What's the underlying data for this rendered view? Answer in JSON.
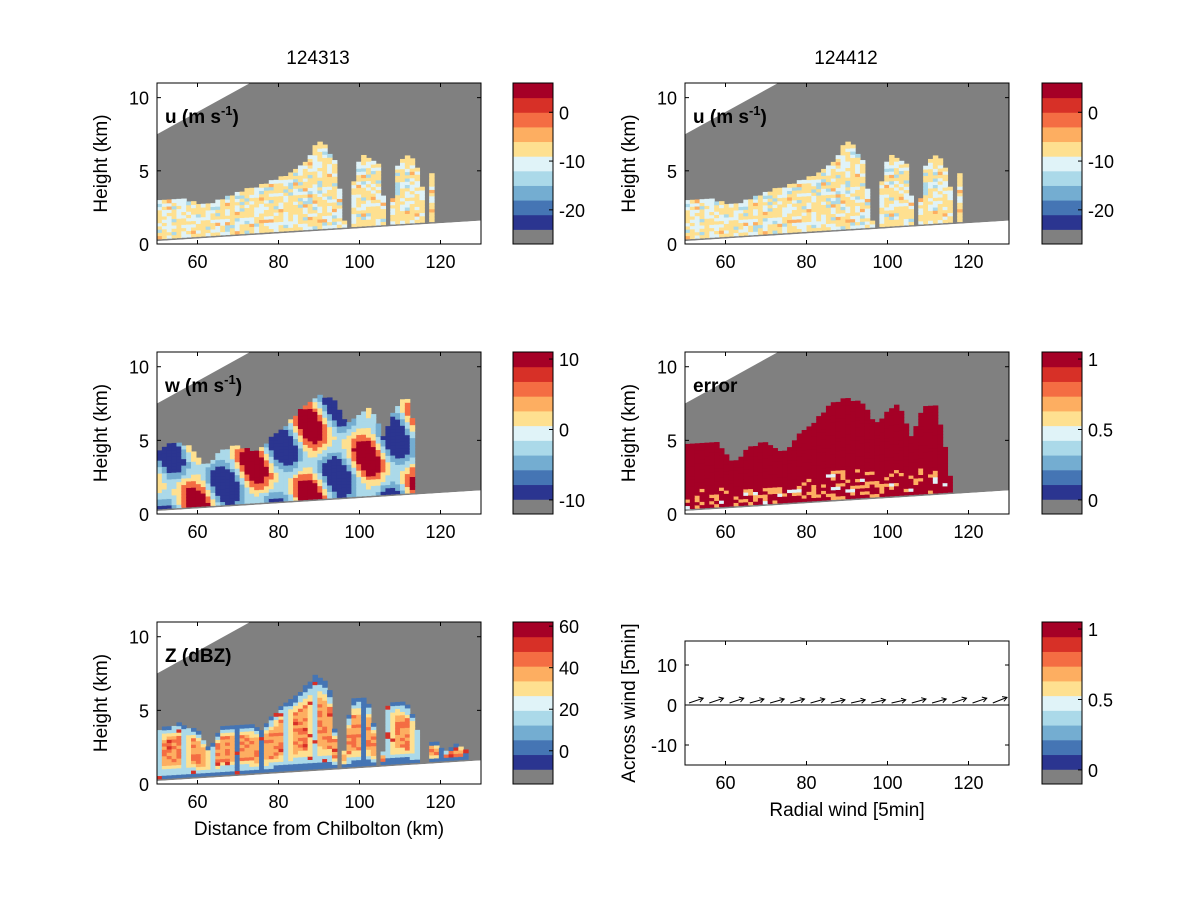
{
  "titles": {
    "left": "124313",
    "right": "124412"
  },
  "colorbar_colors": [
    "#808080",
    "#2b3590",
    "#4575b4",
    "#74add1",
    "#abd9e9",
    "#e0f3f8",
    "#fee090",
    "#fdae61",
    "#f46d43",
    "#d73027",
    "#a50026"
  ],
  "chart_data": [
    {
      "panel": "u-124313",
      "type": "heatmap",
      "label": "u (m s-1)",
      "label_main": "u (m s",
      "label_sup": "-1",
      "label_close": ")",
      "xlabel": "",
      "ylabel": "Height (km)",
      "xlim": [
        50,
        130
      ],
      "ylim": [
        0,
        11
      ],
      "xticks": [
        60,
        80,
        100,
        120
      ],
      "yticks": [
        0,
        5,
        10
      ],
      "cbar_ticks": [
        0,
        -10,
        -20
      ],
      "cbar_range": [
        -27,
        6
      ],
      "cloud_profile": [
        [
          50,
          3.0
        ],
        [
          55,
          3.0
        ],
        [
          62,
          2.6
        ],
        [
          66,
          3.0
        ],
        [
          72,
          3.6
        ],
        [
          78,
          4.2
        ],
        [
          84,
          4.9
        ],
        [
          87,
          5.6
        ],
        [
          90,
          7.0
        ],
        [
          92,
          6.4
        ],
        [
          94,
          5.5
        ],
        [
          97,
          0
        ],
        [
          99,
          5.3
        ],
        [
          101,
          5.9
        ],
        [
          103,
          5.6
        ],
        [
          105,
          5.2
        ],
        [
          107,
          0
        ],
        [
          109,
          5.0
        ],
        [
          111,
          6.0
        ],
        [
          113,
          5.8
        ],
        [
          115,
          4.8
        ],
        [
          117,
          0
        ],
        [
          118,
          5.8
        ],
        [
          119,
          5.0
        ]
      ],
      "cloud_mode": "u"
    },
    {
      "panel": "u-124412",
      "type": "heatmap",
      "label": "u (m s-1)",
      "label_main": "u (m s",
      "label_sup": "-1",
      "label_close": ")",
      "xlabel": "",
      "ylabel": "Height (km)",
      "xlim": [
        50,
        130
      ],
      "ylim": [
        0,
        11
      ],
      "xticks": [
        60,
        80,
        100,
        120
      ],
      "yticks": [
        0,
        5,
        10
      ],
      "cbar_ticks": [
        0,
        -10,
        -20
      ],
      "cbar_range": [
        -27,
        6
      ],
      "cloud_profile": [
        [
          50,
          3.0
        ],
        [
          55,
          3.0
        ],
        [
          62,
          2.6
        ],
        [
          66,
          3.0
        ],
        [
          72,
          3.6
        ],
        [
          78,
          4.2
        ],
        [
          84,
          4.9
        ],
        [
          87,
          5.6
        ],
        [
          90,
          7.0
        ],
        [
          92,
          6.4
        ],
        [
          94,
          5.5
        ],
        [
          97,
          0
        ],
        [
          99,
          5.3
        ],
        [
          101,
          5.9
        ],
        [
          103,
          5.6
        ],
        [
          105,
          5.2
        ],
        [
          107,
          0
        ],
        [
          109,
          5.0
        ],
        [
          111,
          6.0
        ],
        [
          113,
          5.8
        ],
        [
          115,
          4.8
        ],
        [
          117,
          0
        ],
        [
          118,
          5.8
        ],
        [
          119,
          5.0
        ]
      ],
      "cloud_mode": "u"
    },
    {
      "panel": "w-124313",
      "type": "heatmap",
      "label": "w (m s-1)",
      "label_main": "w (m s",
      "label_sup": "-1",
      "label_close": ")",
      "xlabel": "",
      "ylabel": "Height (km)",
      "xlim": [
        50,
        130
      ],
      "ylim": [
        0,
        11
      ],
      "xticks": [
        60,
        80,
        100,
        120
      ],
      "yticks": [
        0,
        5,
        10
      ],
      "cbar_ticks": [
        10,
        0,
        -10
      ],
      "cbar_range": [
        -12,
        11
      ],
      "cloud_profile": [
        [
          50,
          4.0
        ],
        [
          54,
          4.8
        ],
        [
          58,
          4.5
        ],
        [
          62,
          3.2
        ],
        [
          66,
          4.2
        ],
        [
          70,
          4.6
        ],
        [
          74,
          4.0
        ],
        [
          78,
          5.0
        ],
        [
          82,
          6.0
        ],
        [
          86,
          7.2
        ],
        [
          90,
          8.0
        ],
        [
          94,
          7.6
        ],
        [
          97,
          6.0
        ],
        [
          100,
          6.6
        ],
        [
          102,
          7.2
        ],
        [
          104,
          6.6
        ],
        [
          106,
          5.0
        ],
        [
          108,
          6.6
        ],
        [
          110,
          7.6
        ],
        [
          112,
          7.6
        ],
        [
          114,
          5.0
        ]
      ],
      "cloud_mode": "w"
    },
    {
      "panel": "error",
      "type": "heatmap",
      "label": "error",
      "label_main": "error",
      "label_sup": "",
      "label_close": "",
      "xlabel": "",
      "ylabel": "Height (km)",
      "xlim": [
        50,
        130
      ],
      "ylim": [
        0,
        11
      ],
      "xticks": [
        60,
        80,
        100,
        120
      ],
      "yticks": [
        0,
        5,
        10
      ],
      "cbar_ticks": [
        1,
        0.5,
        0
      ],
      "cbar_range": [
        -0.1,
        1.05
      ],
      "cloud_profile": [
        [
          50,
          4.6
        ],
        [
          54,
          4.6
        ],
        [
          58,
          4.8
        ],
        [
          62,
          3.4
        ],
        [
          66,
          4.4
        ],
        [
          70,
          4.8
        ],
        [
          74,
          4.0
        ],
        [
          78,
          5.2
        ],
        [
          82,
          6.2
        ],
        [
          86,
          7.4
        ],
        [
          90,
          7.8
        ],
        [
          94,
          7.4
        ],
        [
          97,
          6.0
        ],
        [
          100,
          6.8
        ],
        [
          102,
          7.4
        ],
        [
          104,
          6.6
        ],
        [
          106,
          5.0
        ],
        [
          108,
          6.6
        ],
        [
          110,
          7.4
        ],
        [
          112,
          7.2
        ],
        [
          114,
          4.8
        ],
        [
          117,
          0
        ]
      ],
      "cloud_mode": "error"
    },
    {
      "panel": "Z",
      "type": "heatmap",
      "label": "Z (dBZ)",
      "label_main": "Z (dBZ)",
      "label_sup": "",
      "label_close": "",
      "xlabel": "Distance from Chilbolton (km)",
      "ylabel": "Height (km)",
      "xlim": [
        50,
        130
      ],
      "ylim": [
        0,
        11
      ],
      "xticks": [
        60,
        80,
        100,
        120
      ],
      "yticks": [
        0,
        5,
        10
      ],
      "cbar_ticks": [
        60,
        40,
        20,
        0
      ],
      "cbar_range": [
        -16,
        62
      ],
      "cloud_profile": [
        [
          50,
          3.6
        ],
        [
          55,
          4.0
        ],
        [
          60,
          3.6
        ],
        [
          63,
          2.2
        ],
        [
          66,
          3.8
        ],
        [
          72,
          4.0
        ],
        [
          76,
          3.6
        ],
        [
          80,
          5.0
        ],
        [
          84,
          5.8
        ],
        [
          87,
          6.6
        ],
        [
          89,
          7.2
        ],
        [
          91,
          7.0
        ],
        [
          93,
          6.0
        ],
        [
          95,
          0
        ],
        [
          98,
          5.6
        ],
        [
          101,
          5.8
        ],
        [
          103,
          5.0
        ],
        [
          105,
          0
        ],
        [
          107,
          5.2
        ],
        [
          110,
          5.6
        ],
        [
          112,
          5.2
        ],
        [
          114,
          4.0
        ],
        [
          116,
          0
        ],
        [
          118,
          3.0
        ],
        [
          121,
          2.0
        ],
        [
          124,
          2.6
        ],
        [
          127,
          2.2
        ]
      ],
      "cloud_mode": "Z"
    },
    {
      "panel": "wind",
      "type": "scatter",
      "xlabel": "Radial wind [5min]",
      "ylabel": "Across wind [5min]",
      "xlim": [
        50,
        130
      ],
      "ylim": [
        -15,
        16
      ],
      "xticks": [
        60,
        80,
        100,
        120
      ],
      "yticks": [
        10,
        0,
        -10
      ],
      "cbar_ticks": [
        1,
        0.5,
        0
      ],
      "cbar_range": [
        -0.1,
        1.05
      ],
      "x": [
        51,
        56,
        61,
        66,
        71,
        76,
        81,
        86,
        91,
        96,
        101,
        106,
        111,
        116,
        121,
        126
      ],
      "y": [
        0.5,
        0.5,
        0.5,
        0.5,
        0.5,
        0.5,
        0.5,
        0.5,
        0.5,
        0.5,
        0.5,
        0.5,
        0.5,
        0.5,
        0.5,
        0.5
      ],
      "u": [
        3.5,
        3.5,
        3.5,
        3.5,
        3.5,
        3.5,
        3.5,
        3.5,
        3.5,
        3.5,
        3.5,
        3.5,
        3.5,
        3.5,
        3.5,
        3.5
      ],
      "v": [
        1.2,
        1.2,
        1.2,
        1.0,
        1.0,
        1.0,
        1.0,
        0.8,
        0.8,
        0.8,
        0.8,
        1.0,
        1.0,
        1.2,
        1.2,
        1.4
      ]
    }
  ]
}
